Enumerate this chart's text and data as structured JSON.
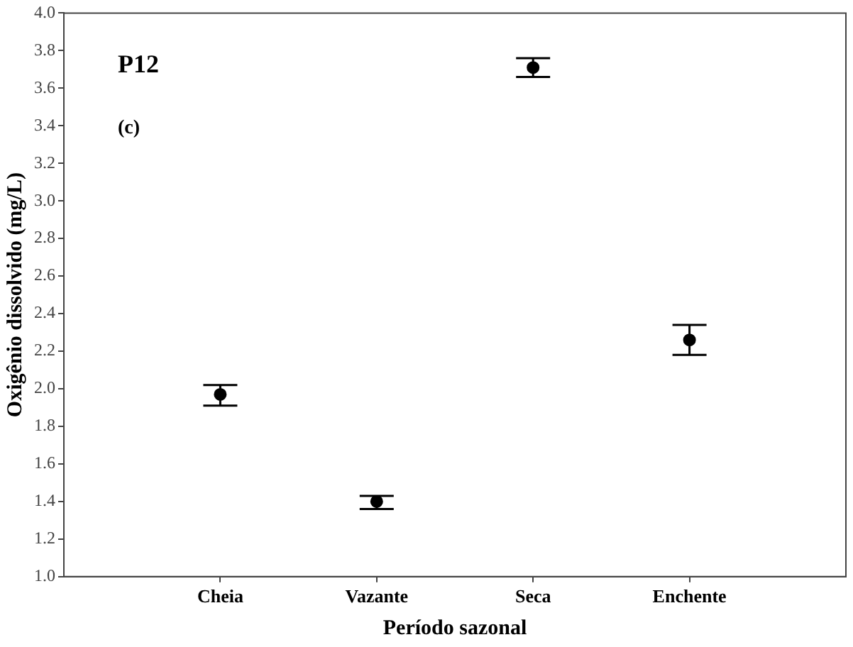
{
  "chart_data": {
    "type": "scatter",
    "xlabel": "Período sazonal",
    "ylabel": "Oxigênio dissolvido (mg/L)",
    "categories": [
      "Cheia",
      "Vazante",
      "Seca",
      "Enchente"
    ],
    "series": [
      {
        "color": "#000000",
        "values": [
          1.97,
          1.4,
          3.71,
          2.26
        ],
        "errors": [
          [
            1.91,
            2.02
          ],
          [
            1.36,
            1.43
          ],
          [
            3.66,
            3.76
          ],
          [
            2.18,
            2.34
          ]
        ]
      }
    ],
    "ylim": [
      1.0,
      4.0
    ],
    "yticks": [
      {
        "value": 1.0,
        "label": "1.0"
      },
      {
        "value": 1.2,
        "label": "1.2"
      },
      {
        "value": 1.4,
        "label": "1.4"
      },
      {
        "value": 1.6,
        "label": "1.6"
      },
      {
        "value": 1.8,
        "label": "1.8"
      },
      {
        "value": 2.0,
        "label": "2.0"
      },
      {
        "value": 2.2,
        "label": "2.2"
      },
      {
        "value": 2.4,
        "label": "2.4"
      },
      {
        "value": 2.6,
        "label": "2.6"
      },
      {
        "value": 2.8,
        "label": "2.8"
      },
      {
        "value": 3.0,
        "label": "3.0"
      },
      {
        "value": 3.2,
        "label": "3.2"
      },
      {
        "value": 3.4,
        "label": "3.4"
      },
      {
        "value": 3.6,
        "label": "3.6"
      },
      {
        "value": 3.8,
        "label": "3.8"
      },
      {
        "value": 4.0,
        "label": "4.0"
      }
    ],
    "annotations": [
      "P12",
      "(c)"
    ],
    "grid": false,
    "legend": false,
    "marker": "circle"
  }
}
